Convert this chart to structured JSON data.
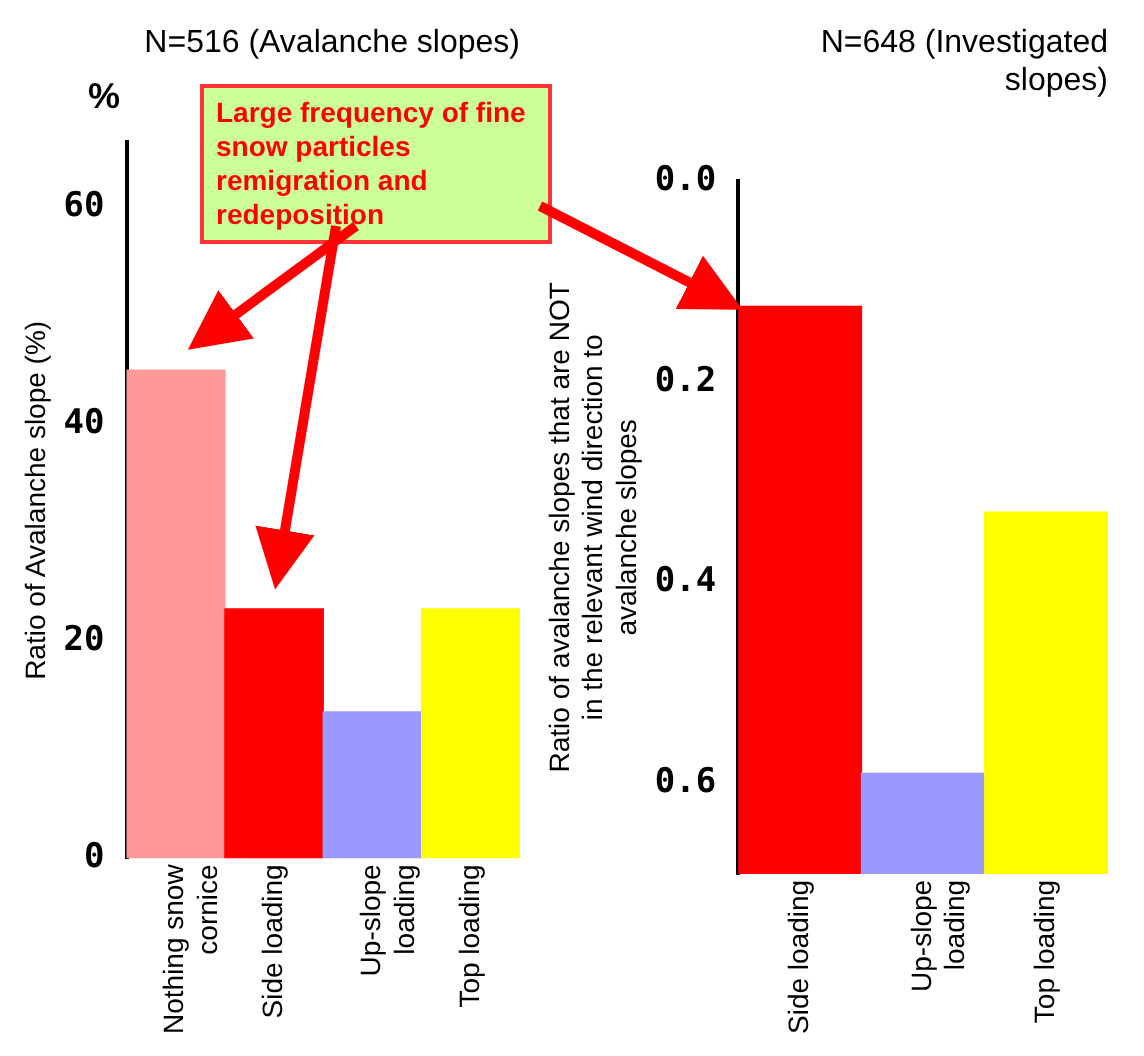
{
  "chart_data": [
    {
      "type": "bar",
      "title": "N=516 (Avalanche slopes)",
      "ylabel": "Ratio of Avalanche slope (%)",
      "categories": [
        "Nothing snow cornice",
        "Side loading",
        "Up-slope loading",
        "Top loading"
      ],
      "values": [
        45,
        23,
        13.5,
        23
      ],
      "colors": [
        "#ff9999",
        "#ff0000",
        "#9999ff",
        "#ffff00"
      ],
      "ylim": [
        0,
        66
      ],
      "yticks": [
        0,
        20,
        40,
        60
      ],
      "grid": false,
      "legend": false,
      "annotations": [
        "%",
        "Large frequency of fine snow particles remigration and redeposition"
      ]
    },
    {
      "type": "bar",
      "title": "N=648 (Investigated slopes)",
      "ylabel": "Ratio of avalanche slopes that are NOT in the relevant wind direction to avalanche slopes",
      "categories": [
        "Side loading",
        "Up-slope loading",
        "Top loading"
      ],
      "values": [
        -0.565,
        -0.1,
        -0.36
      ],
      "base": [
        0.69,
        0.69,
        0.69
      ],
      "colors": [
        "#ff0000",
        "#9999ff",
        "#ffff00"
      ],
      "ylim": [
        0.69,
        0
      ],
      "yticks": [
        {
          "value": 0,
          "label": "0.0"
        },
        0.2,
        0.4,
        0.6
      ],
      "grid": false,
      "legend": false
    }
  ]
}
